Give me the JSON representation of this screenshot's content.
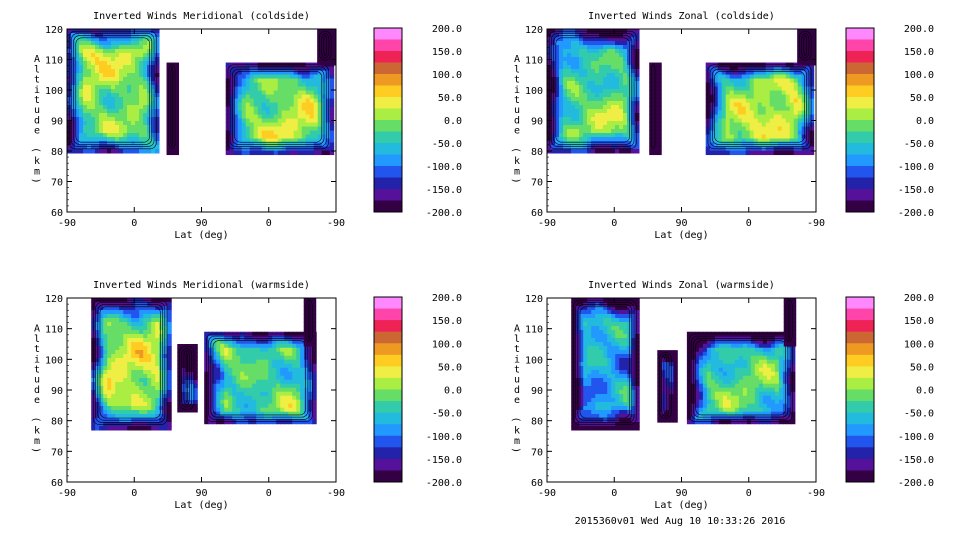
{
  "footer": "2015360v01 Wed Aug 10 10:33:26 2016",
  "colorbar": {
    "labels": [
      "200.0",
      "150.0",
      "100.0",
      "50.0",
      "0.0",
      "-50.0",
      "-100.0",
      "-150.0",
      "-200.0"
    ],
    "levels": [
      200,
      150,
      100,
      50,
      0,
      -50,
      -100,
      -150,
      -200
    ],
    "colors": [
      "#ff88ff",
      "#ff44aa",
      "#ee2255",
      "#cc6633",
      "#ee9922",
      "#ffcc22",
      "#eeee44",
      "#aaee44",
      "#66dd66",
      "#33ccaa",
      "#22bbdd",
      "#2299ff",
      "#2255ee",
      "#2222aa",
      "#551199",
      "#330044"
    ]
  },
  "chart_data": [
    {
      "type": "heatmap",
      "title": "Inverted Winds Meridional (coldside)",
      "xlabel": "Lat (deg)",
      "ylabel": "Altitude (km)",
      "x_ticks": [
        "-90",
        "0",
        "90",
        "0",
        "-90"
      ],
      "y_ticks": [
        "60",
        "70",
        "80",
        "90",
        "100",
        "110",
        "120"
      ],
      "ylim": [
        60,
        120
      ],
      "value_range": [
        -200,
        200
      ]
    },
    {
      "type": "heatmap",
      "title": "Inverted Winds Zonal (coldside)",
      "xlabel": "Lat (deg)",
      "ylabel": "Altitude (km)",
      "x_ticks": [
        "-90",
        "0",
        "90",
        "0",
        "-90"
      ],
      "y_ticks": [
        "60",
        "70",
        "80",
        "90",
        "100",
        "110",
        "120"
      ],
      "ylim": [
        60,
        120
      ],
      "value_range": [
        -200,
        200
      ]
    },
    {
      "type": "heatmap",
      "title": "Inverted Winds Meridional (warmside)",
      "xlabel": "Lat (deg)",
      "ylabel": "Altitude (km)",
      "x_ticks": [
        "-90",
        "0",
        "90",
        "0",
        "-90"
      ],
      "y_ticks": [
        "60",
        "70",
        "80",
        "90",
        "100",
        "110",
        "120"
      ],
      "ylim": [
        60,
        120
      ],
      "value_range": [
        -200,
        200
      ]
    },
    {
      "type": "heatmap",
      "title": "Inverted Winds Zonal (warmside)",
      "xlabel": "Lat (deg)",
      "ylabel": "Altitude (km)",
      "x_ticks": [
        "-90",
        "0",
        "90",
        "0",
        "-90"
      ],
      "y_ticks": [
        "60",
        "70",
        "80",
        "90",
        "100",
        "110",
        "120"
      ],
      "ylim": [
        60,
        120
      ],
      "value_range": [
        -200,
        200
      ]
    }
  ]
}
